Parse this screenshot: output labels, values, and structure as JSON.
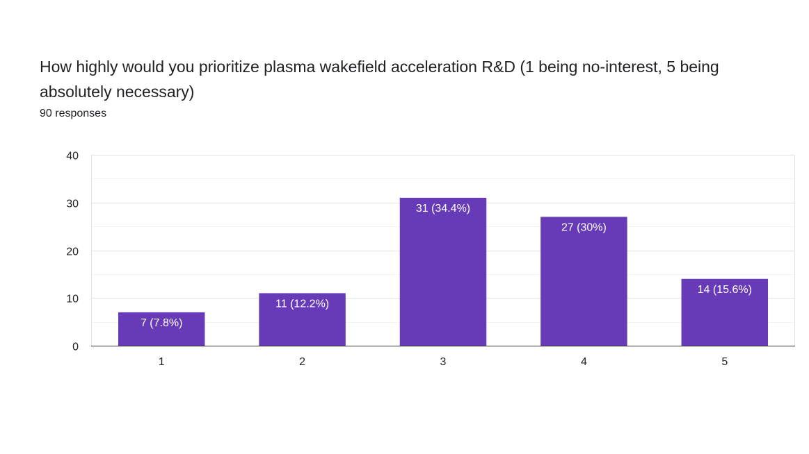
{
  "chart_data": {
    "type": "bar",
    "title": "How highly would you prioritize plasma wakefield acceleration R&D (1 being no-interest, 5 being absolutely necessary)",
    "subtitle": "90 responses",
    "categories": [
      "1",
      "2",
      "3",
      "4",
      "5"
    ],
    "values": [
      7,
      11,
      31,
      27,
      14
    ],
    "data_labels": [
      "7 (7.8%)",
      "11 (12.2%)",
      "31 (34.4%)",
      "27 (30%)",
      "14 (15.6%)"
    ],
    "xlabel": "",
    "ylabel": "",
    "ylim": [
      0,
      40
    ],
    "yticks": [
      0,
      10,
      20,
      30,
      40
    ],
    "grid": true,
    "legend": "none",
    "bar_color": "#673ab7"
  }
}
